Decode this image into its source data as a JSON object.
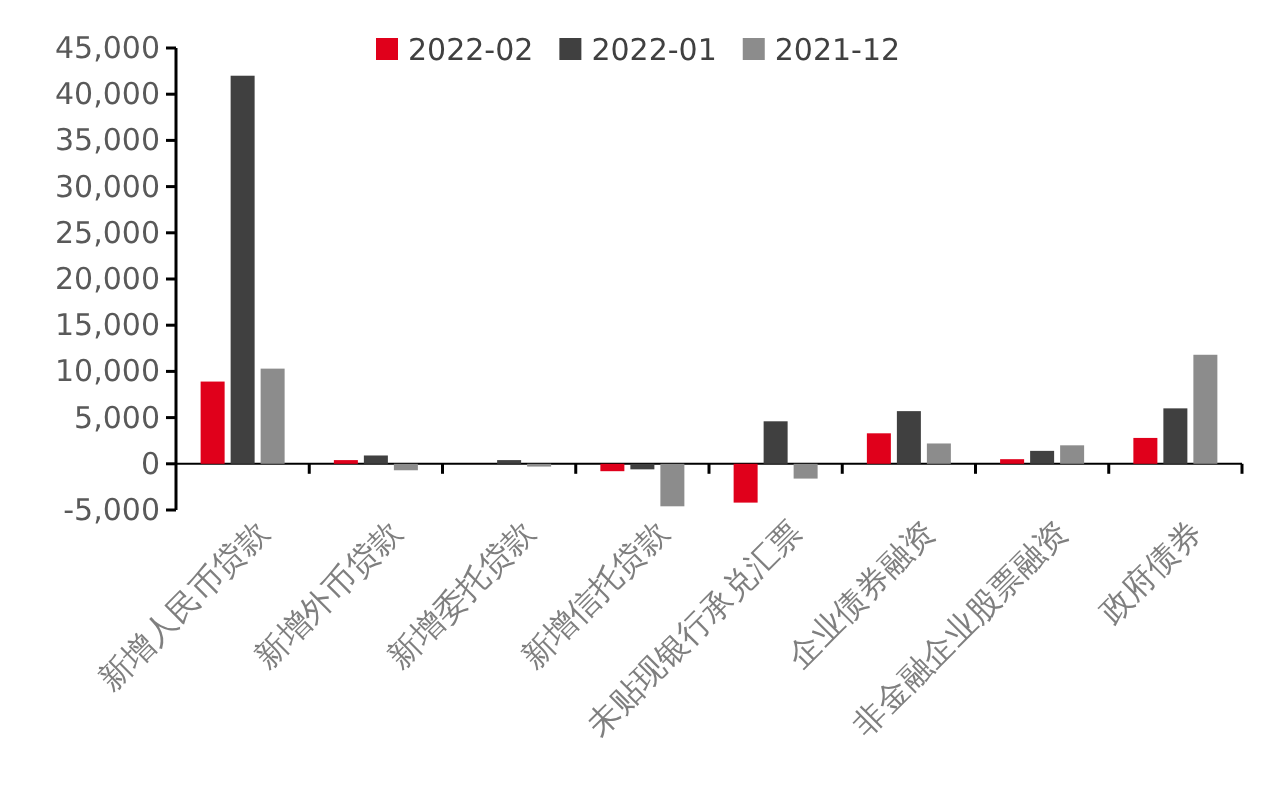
{
  "chart_data": {
    "type": "bar",
    "categories": [
      "新增人民币贷款",
      "新增外币贷款",
      "新增委托贷款",
      "新增信托贷款",
      "未贴现银行承兑汇票",
      "企业债券融资",
      "非金融企业股票融资",
      "政府债券"
    ],
    "series": [
      {
        "name": "2022-02",
        "color": "#e0001b",
        "values": [
          8900,
          400,
          0,
          -800,
          -4200,
          3300,
          500,
          2800
        ]
      },
      {
        "name": "2022-01",
        "color": "#404040",
        "values": [
          42000,
          900,
          400,
          -600,
          4600,
          5700,
          1400,
          6000
        ]
      },
      {
        "name": "2021-12",
        "color": "#8c8c8c",
        "values": [
          10300,
          -700,
          -300,
          -4600,
          -1600,
          2200,
          2000,
          11800
        ]
      }
    ],
    "ylim": [
      -5000,
      45000
    ],
    "yticks": [
      {
        "value": -5000,
        "label": "-5,000"
      },
      0,
      {
        "value": 5000,
        "label": "5,000"
      },
      {
        "value": 10000,
        "label": "10,000"
      },
      {
        "value": 15000,
        "label": "15,000"
      },
      {
        "value": 20000,
        "label": "20,000"
      },
      {
        "value": 25000,
        "label": "25,000"
      },
      {
        "value": 30000,
        "label": "30,000"
      },
      {
        "value": 35000,
        "label": "35,000"
      },
      {
        "value": 40000,
        "label": "40,000"
      },
      {
        "value": 45000,
        "label": "45,000"
      }
    ],
    "legend": "top",
    "grid": false
  }
}
